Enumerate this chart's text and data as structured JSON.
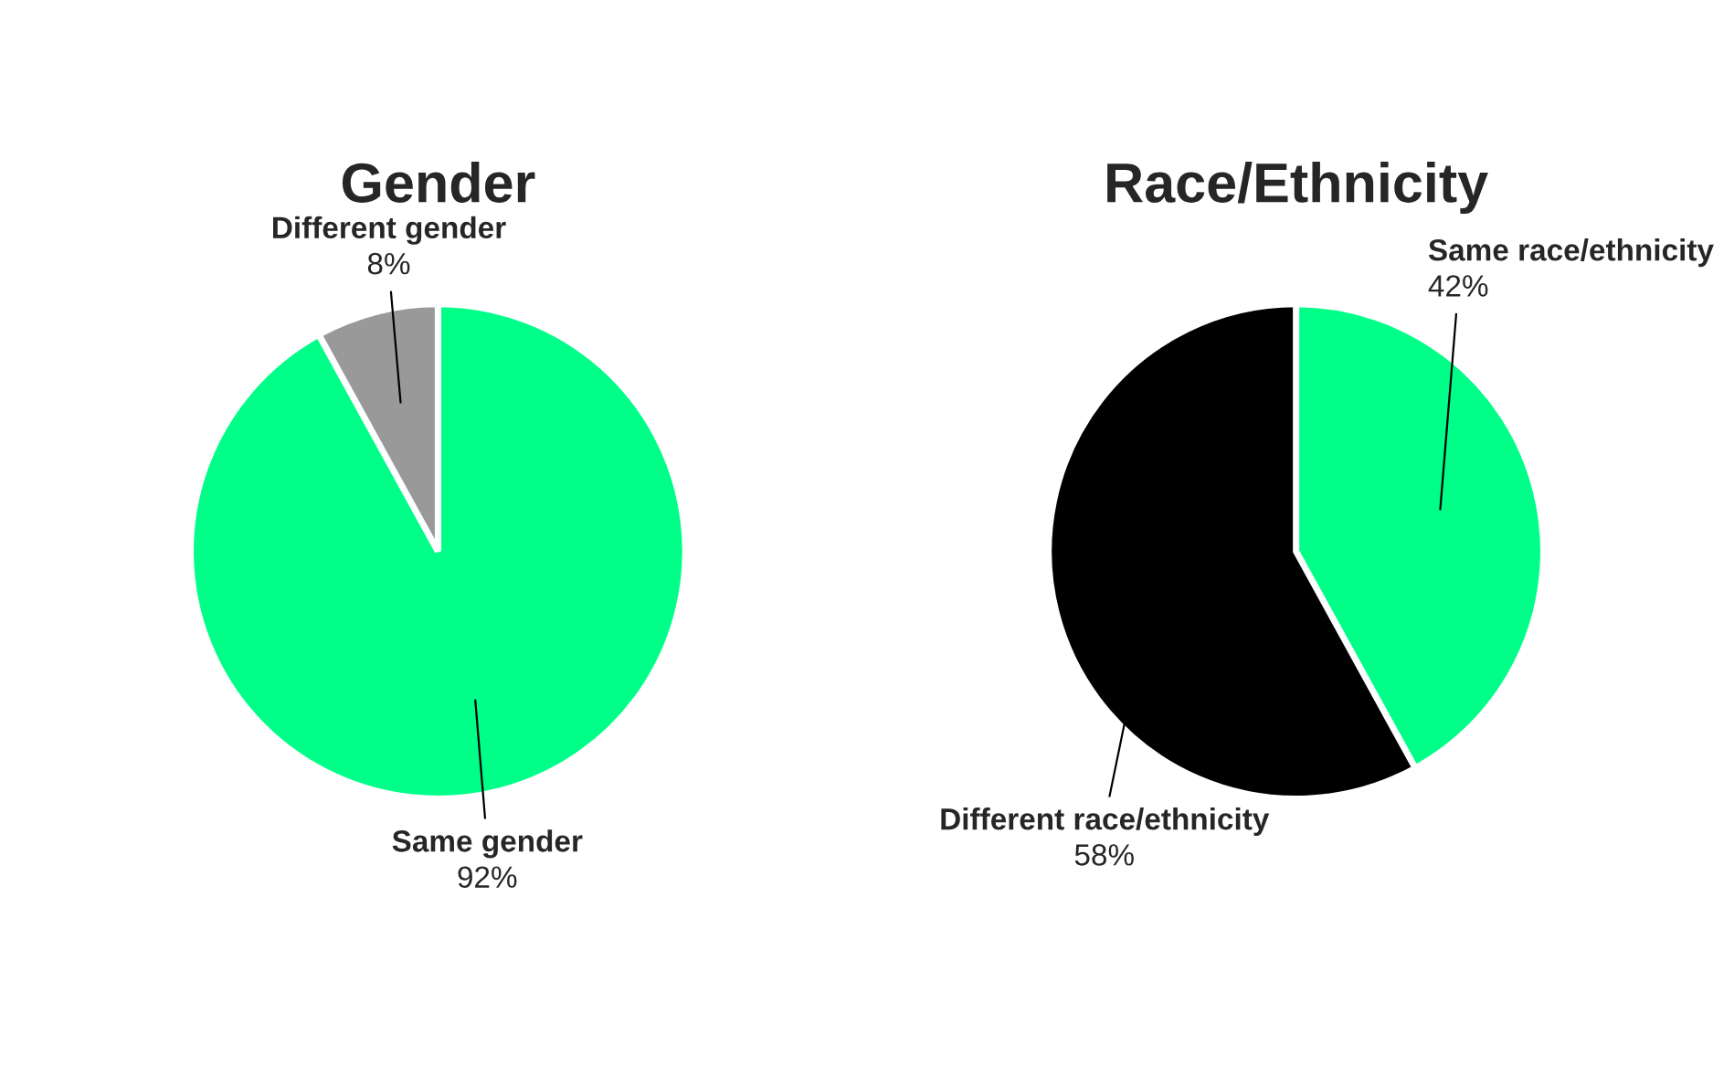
{
  "chart_data": [
    {
      "type": "pie",
      "title": "Gender",
      "categories": [
        "Same gender",
        "Different gender"
      ],
      "values": [
        92,
        8
      ],
      "value_labels": [
        "92%",
        "8%"
      ],
      "colors": [
        "#00ff88",
        "#999999"
      ]
    },
    {
      "type": "pie",
      "title": "Race/Ethnicity",
      "categories": [
        "Same race/ethnicity",
        "Different race/ethnicity"
      ],
      "values": [
        42,
        58
      ],
      "value_labels": [
        "42%",
        "58%"
      ],
      "colors": [
        "#00ff88",
        "#000000"
      ]
    }
  ]
}
